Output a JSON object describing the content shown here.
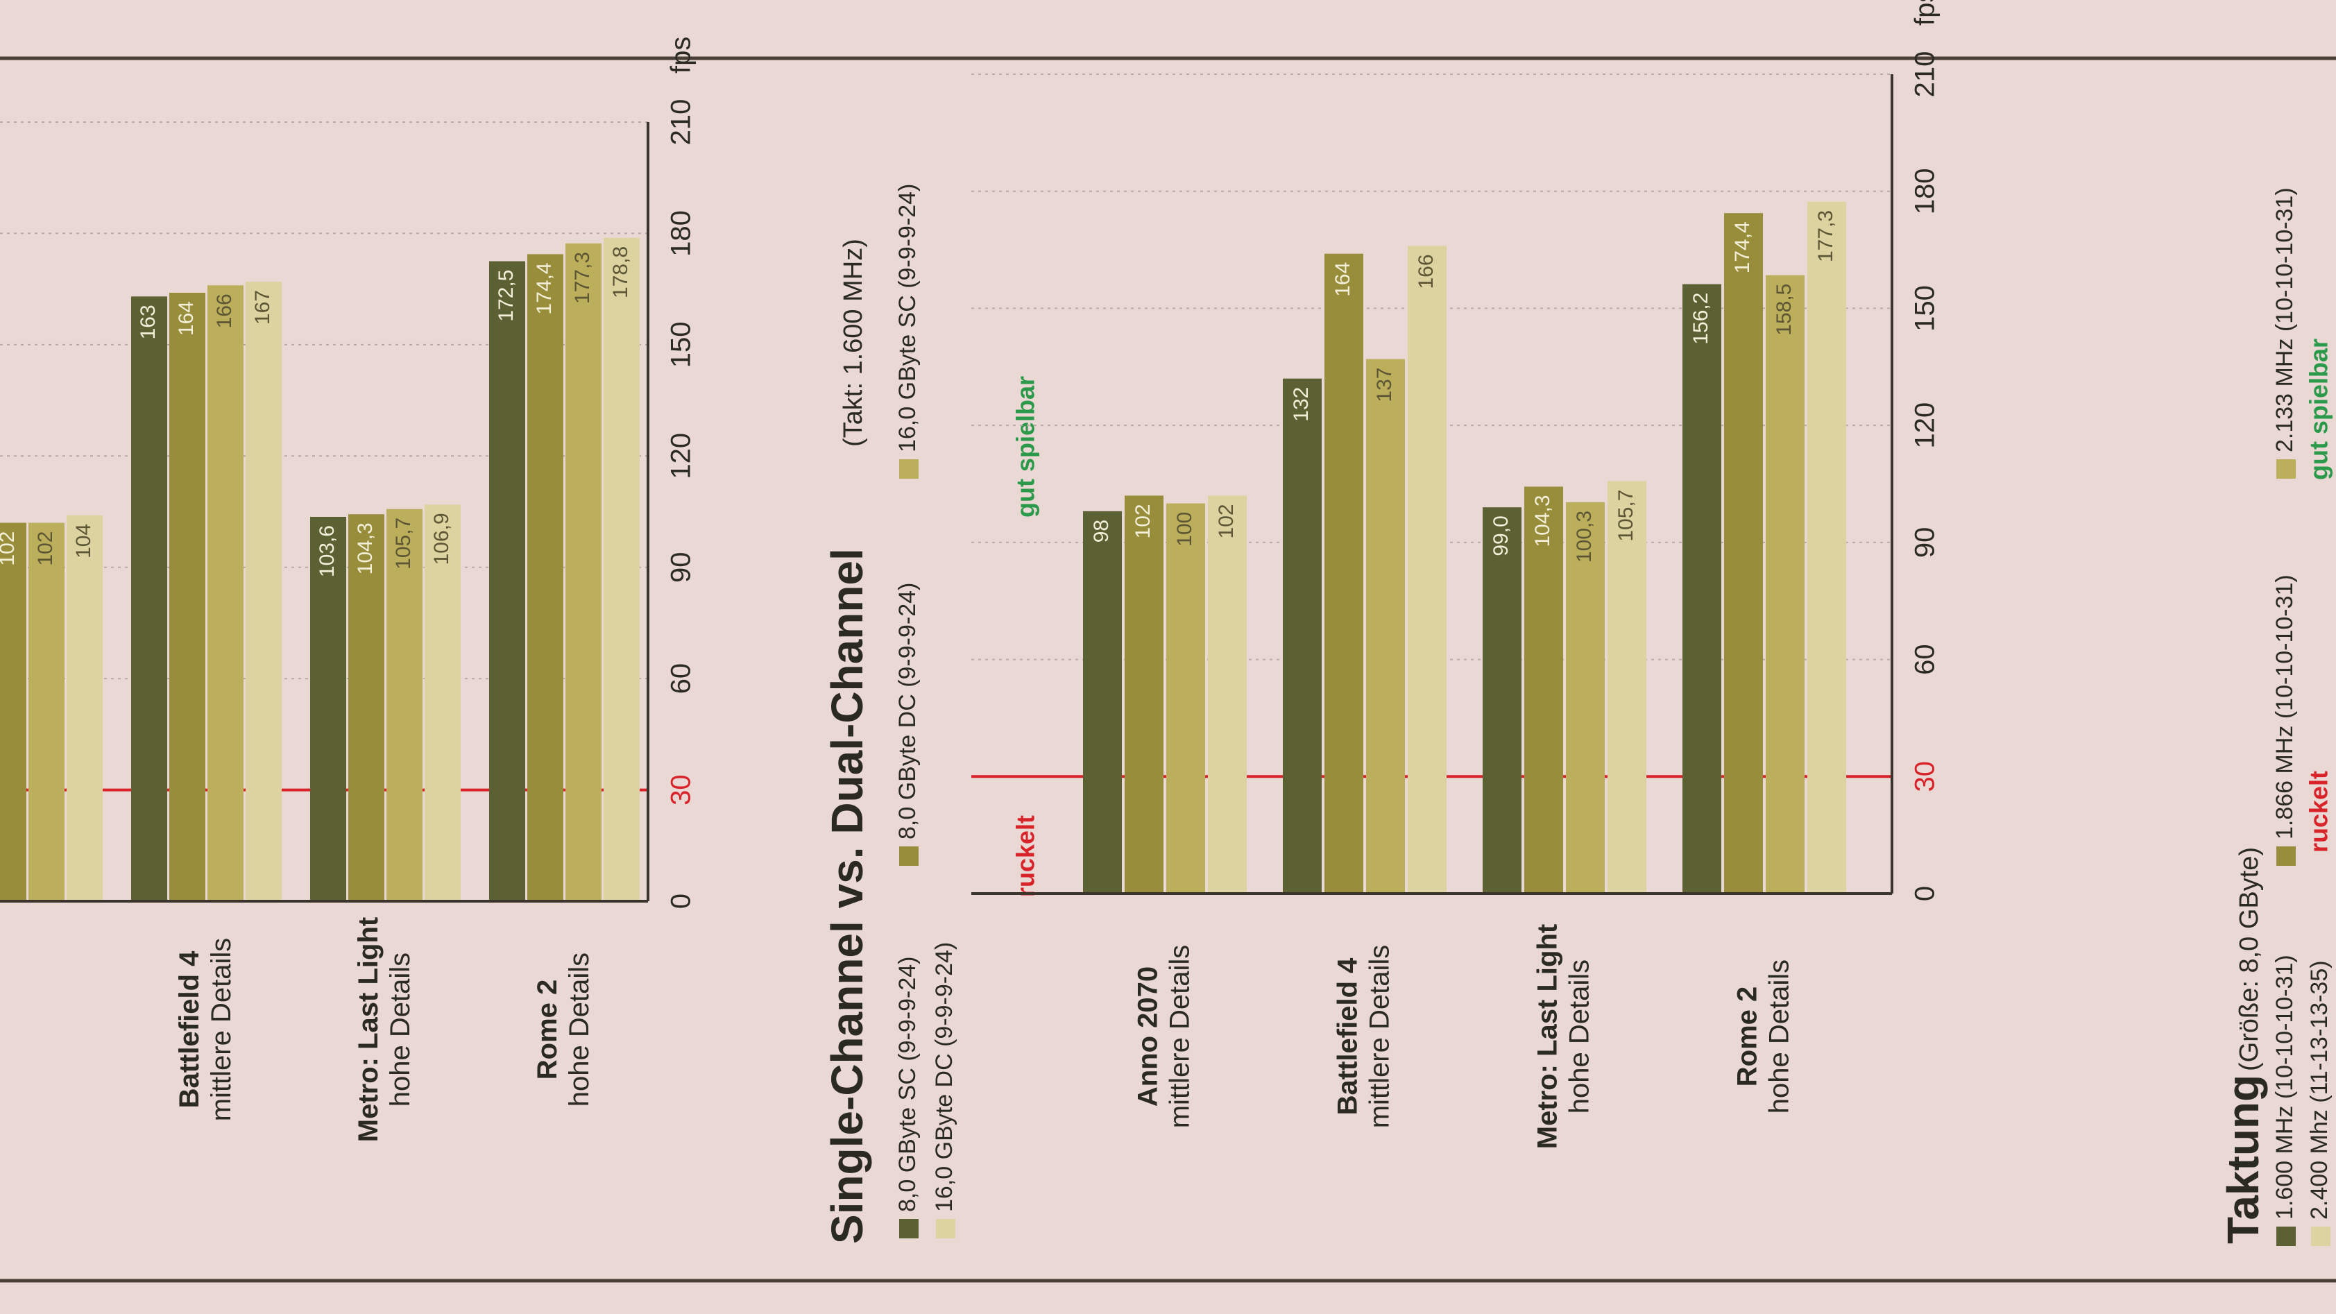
{
  "chart_data": [
    {
      "type": "bar",
      "orientation": "horizontal",
      "categories": [
        null,
        "Battlefield 4",
        "Metro: Last Light",
        "Rome 2"
      ],
      "category_details": [
        null,
        "mittlere Details",
        "hohe Details",
        "hohe Details"
      ],
      "series": [
        {
          "color": "#5c6134",
          "values": [
            null,
            163,
            103.6,
            172.5
          ],
          "value_labels": [
            null,
            "163",
            "103,6",
            "172,5"
          ]
        },
        {
          "color": "#978d3a",
          "values": [
            102,
            164,
            104.3,
            174.4
          ],
          "value_labels": [
            "102",
            "164",
            "104,3",
            "174,4"
          ]
        },
        {
          "color": "#bcaf5c",
          "values": [
            102,
            166,
            105.7,
            177.3
          ],
          "value_labels": [
            "102",
            "166",
            "105,7",
            "177,3"
          ]
        },
        {
          "color": "#dcd3a0",
          "values": [
            104,
            167,
            106.9,
            178.8
          ],
          "value_labels": [
            "104",
            "167",
            "106,9",
            "178,8"
          ]
        }
      ],
      "xlim": [
        0,
        210
      ],
      "xticks": [
        0,
        30,
        60,
        90,
        120,
        150,
        180,
        210
      ],
      "x_label": "fps",
      "threshold": 30,
      "threshold_color": "#d8232a",
      "grid": true
    },
    {
      "type": "bar",
      "orientation": "horizontal",
      "title": "Single-Channel vs. Dual-Channel",
      "subtitle": "(Takt: 1.600 MHz)",
      "categories": [
        "Anno 2070",
        "Battlefield 4",
        "Metro: Last Light",
        "Rome 2"
      ],
      "category_details": [
        "mittlere Details",
        "mittlere Details",
        "hohe Details",
        "hohe Details"
      ],
      "series": [
        {
          "name": "8,0 GByte SC (9-9-9-24)",
          "color": "#5c6134",
          "values": [
            98,
            132,
            99.0,
            156.2
          ],
          "value_labels": [
            "98",
            "132",
            "99,0",
            "156,2"
          ]
        },
        {
          "name": "8,0 GByte DC (9-9-9-24)",
          "color": "#978d3a",
          "values": [
            102,
            164,
            104.3,
            174.4
          ],
          "value_labels": [
            "102",
            "164",
            "104,3",
            "174,4"
          ]
        },
        {
          "name": "16,0 GByte SC (9-9-9-24)",
          "color": "#bcaf5c",
          "values": [
            100,
            137,
            100.3,
            158.5
          ],
          "value_labels": [
            "100",
            "137",
            "100,3",
            "158,5"
          ]
        },
        {
          "name": "16,0 GByte DC (9-9-9-24)",
          "color": "#dcd3a0",
          "values": [
            102,
            166,
            105.7,
            177.3
          ],
          "value_labels": [
            "102",
            "166",
            "105,7",
            "177,3"
          ]
        }
      ],
      "xlim": [
        0,
        210
      ],
      "xticks": [
        0,
        30,
        60,
        90,
        120,
        150,
        180,
        210
      ],
      "x_label": "fps",
      "threshold": 30,
      "threshold_color": "#d8232a",
      "grid": true,
      "annotations": {
        "low": "ruckelt",
        "high": "gut spielbar"
      }
    },
    {
      "type": "bar",
      "orientation": "horizontal",
      "title": "Taktung",
      "subtitle": "(Größe: 8,0 GByte)",
      "series": [
        {
          "name": "1.600 MHz (10-10-10-31)",
          "color": "#5c6134"
        },
        {
          "name": "1.866 MHz (10-10-10-31)",
          "color": "#978d3a"
        },
        {
          "name": "2.133 MHz (10-10-10-31)",
          "color": "#bcaf5c"
        },
        {
          "name": "2.400 Mhz (11-13-13-35)",
          "color": "#dcd3a0"
        }
      ],
      "threshold_color": "#d8232a",
      "annotations": {
        "low": "ruckelt",
        "high": "gut spielbar"
      }
    }
  ]
}
